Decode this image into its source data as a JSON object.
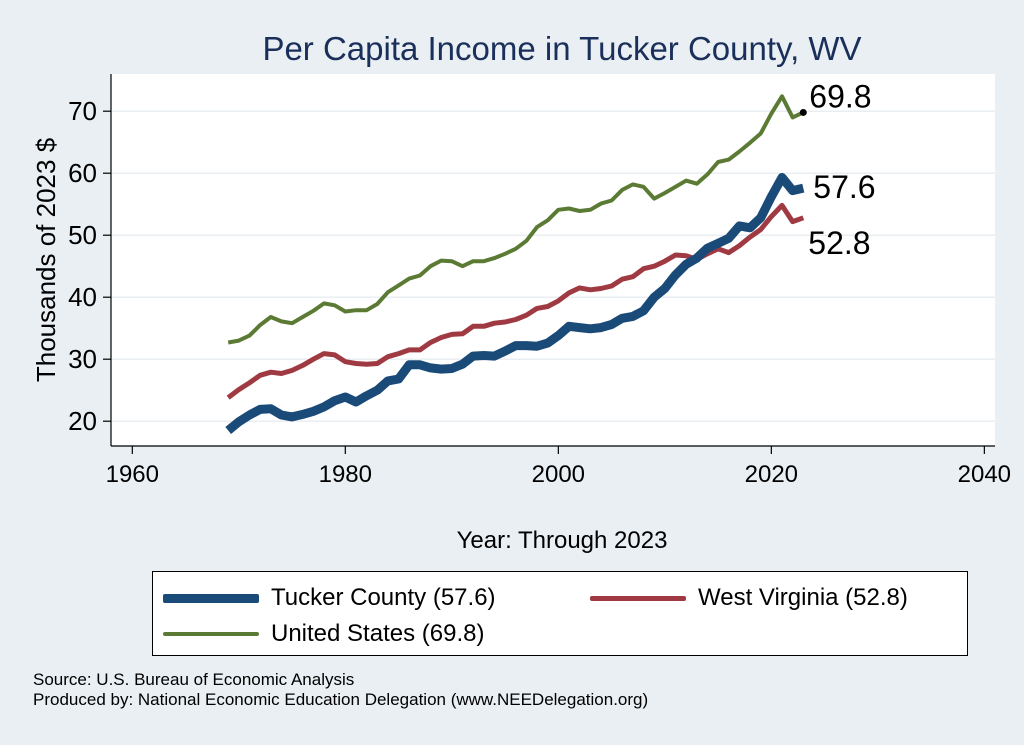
{
  "chart_data": {
    "type": "line",
    "title": "Per Capita Income in Tucker County, WV",
    "xlabel": "Year: Through 2023",
    "ylabel": "Thousands of 2023 $",
    "xlim": [
      1958,
      2041
    ],
    "ylim": [
      16,
      76
    ],
    "xticks": [
      1960,
      1980,
      2000,
      2020,
      2040
    ],
    "yticks": [
      20,
      30,
      40,
      50,
      60,
      70
    ],
    "grid": true,
    "legend_position": "bottom",
    "x": [
      1969,
      1970,
      1971,
      1972,
      1973,
      1974,
      1975,
      1976,
      1977,
      1978,
      1979,
      1980,
      1981,
      1982,
      1983,
      1984,
      1985,
      1986,
      1987,
      1988,
      1989,
      1990,
      1991,
      1992,
      1993,
      1994,
      1995,
      1996,
      1997,
      1998,
      1999,
      2000,
      2001,
      2002,
      2003,
      2004,
      2005,
      2006,
      2007,
      2008,
      2009,
      2010,
      2011,
      2012,
      2013,
      2014,
      2015,
      2016,
      2017,
      2018,
      2019,
      2020,
      2021,
      2022,
      2023
    ],
    "series": [
      {
        "name": "United States",
        "legend_label": "United States (69.8)",
        "color": "#5b7a34",
        "width": 4,
        "values": [
          32.7,
          33.0,
          33.8,
          35.5,
          36.8,
          36.1,
          35.8,
          36.8,
          37.8,
          39.0,
          38.7,
          37.7,
          37.9,
          37.9,
          38.9,
          40.8,
          41.9,
          43.0,
          43.5,
          45.0,
          45.9,
          45.8,
          45.0,
          45.8,
          45.8,
          46.3,
          47.0,
          47.8,
          49.1,
          51.3,
          52.4,
          54.1,
          54.3,
          53.9,
          54.1,
          55.1,
          55.6,
          57.3,
          58.2,
          57.8,
          55.9,
          56.8,
          57.8,
          58.8,
          58.3,
          59.8,
          61.8,
          62.2,
          63.5,
          64.9,
          66.4,
          69.6,
          72.4,
          69.0,
          69.8
        ],
        "end_label": "69.8"
      },
      {
        "name": "Tucker County",
        "legend_label": "Tucker County (57.6)",
        "color": "#1a4a78",
        "width": 9,
        "values": [
          18.5,
          19.9,
          21.0,
          21.9,
          22.0,
          21.0,
          20.7,
          21.1,
          21.6,
          22.3,
          23.3,
          23.9,
          23.1,
          24.1,
          25.0,
          26.5,
          26.8,
          29.1,
          29.1,
          28.6,
          28.4,
          28.5,
          29.2,
          30.5,
          30.6,
          30.5,
          31.3,
          32.2,
          32.2,
          32.1,
          32.6,
          33.8,
          35.3,
          35.1,
          34.9,
          35.1,
          35.6,
          36.6,
          36.9,
          37.8,
          40.0,
          41.4,
          43.6,
          45.3,
          46.3,
          47.9,
          48.7,
          49.5,
          51.5,
          51.2,
          52.8,
          56.2,
          59.3,
          57.2,
          57.6
        ],
        "end_label": "57.6"
      },
      {
        "name": "West Virginia",
        "legend_label": "West Virginia (52.8)",
        "color": "#a03a42",
        "width": 5,
        "values": [
          23.8,
          25.1,
          26.2,
          27.4,
          27.9,
          27.7,
          28.2,
          29.0,
          30.0,
          30.9,
          30.7,
          29.6,
          29.3,
          29.2,
          29.3,
          30.4,
          30.9,
          31.5,
          31.5,
          32.7,
          33.5,
          34.0,
          34.1,
          35.3,
          35.3,
          35.8,
          36.0,
          36.4,
          37.1,
          38.2,
          38.5,
          39.4,
          40.7,
          41.5,
          41.2,
          41.4,
          41.8,
          42.9,
          43.3,
          44.6,
          45.0,
          45.8,
          46.8,
          46.7,
          46.1,
          47.0,
          47.8,
          47.2,
          48.3,
          49.7,
          50.9,
          53.0,
          54.8,
          52.2,
          52.8
        ],
        "end_label": "52.8"
      }
    ]
  },
  "footer": {
    "source": "Source: U.S. Bureau of Economic Analysis",
    "produced_by": "Produced by: National Economic Education Delegation (www.NEEDelegation.org)"
  },
  "colors": {
    "background": "#e9eff3",
    "plot_background": "#ffffff",
    "title": "#1a2f5a"
  }
}
